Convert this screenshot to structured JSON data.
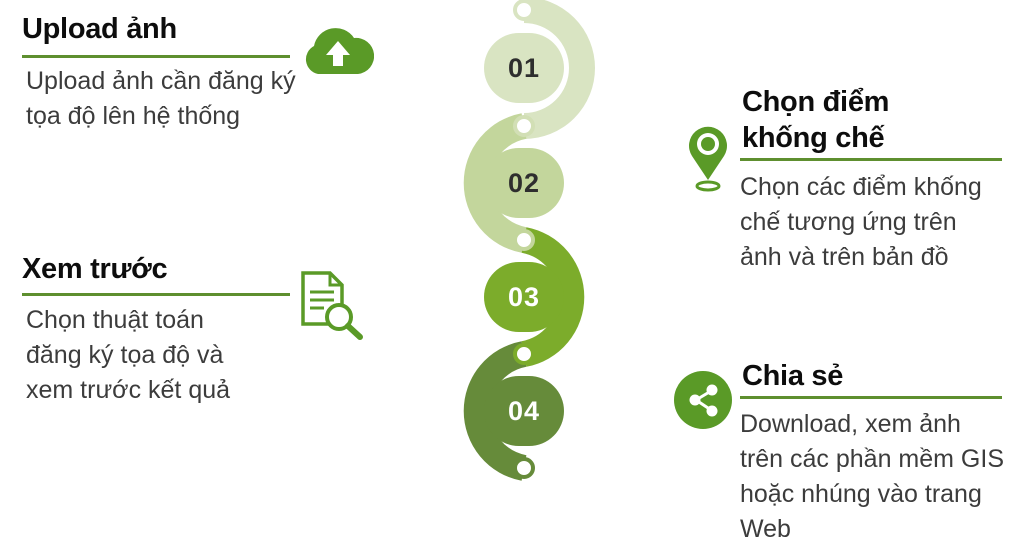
{
  "colors": {
    "step1": "#d9e4c2",
    "step2": "#c3d69c",
    "step3": "#7cac2b",
    "step4": "#668b3a",
    "accent": "#5e8f2f",
    "icon": "#5a9a27"
  },
  "steps": [
    {
      "number": "01"
    },
    {
      "number": "02"
    },
    {
      "number": "03"
    },
    {
      "number": "04"
    }
  ],
  "upload": {
    "title": "Upload ảnh",
    "description": "Upload ảnh cần đăng ký\ntọa độ lên hệ thống",
    "icon": "cloud-upload-icon"
  },
  "preview": {
    "title": "Xem trước",
    "description": "Chọn thuật toán\nđăng ký tọa độ và\nxem trước kết quả",
    "icon": "document-search-icon"
  },
  "control": {
    "title": "Chọn điểm\nkhống chế",
    "description": "Chọn các điểm khống\nchế tương ứng trên\nảnh và trên bản đồ",
    "icon": "map-pin-icon"
  },
  "share": {
    "title": "Chia sẻ",
    "description": "Download, xem ảnh\ntrên các phần mềm GIS\nhoặc nhúng vào trang\nWeb",
    "icon": "share-icon"
  }
}
